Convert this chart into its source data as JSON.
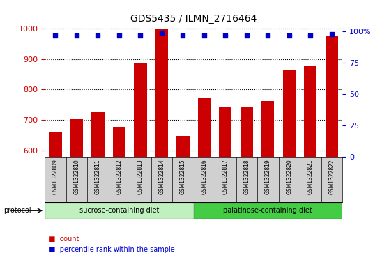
{
  "title": "GDS5435 / ILMN_2716464",
  "samples": [
    "GSM1322809",
    "GSM1322810",
    "GSM1322811",
    "GSM1322812",
    "GSM1322813",
    "GSM1322814",
    "GSM1322815",
    "GSM1322816",
    "GSM1322817",
    "GSM1322818",
    "GSM1322819",
    "GSM1322820",
    "GSM1322821",
    "GSM1322822"
  ],
  "counts": [
    663,
    703,
    727,
    678,
    885,
    997,
    648,
    773,
    745,
    742,
    762,
    863,
    878,
    975
  ],
  "percentiles": [
    97,
    97,
    97,
    97,
    97,
    99,
    97,
    97,
    97,
    97,
    97,
    97,
    97,
    98
  ],
  "ylim_left": [
    580,
    1010
  ],
  "ylim_right": [
    0,
    105
  ],
  "yticks_left": [
    600,
    700,
    800,
    900,
    1000
  ],
  "ytick_left_labels": [
    "600",
    "700",
    "800",
    "900",
    "1000"
  ],
  "yticks_right": [
    0,
    25,
    50,
    75,
    100
  ],
  "ytick_right_labels": [
    "0",
    "25",
    "50",
    "75",
    "100%"
  ],
  "bar_color": "#cc0000",
  "dot_color": "#0000cc",
  "grid_color": "#000000",
  "bg_color": "#ffffff",
  "sample_box_color": "#d0d0d0",
  "sucrose_color": "#c0f0c0",
  "palatinose_color": "#44cc44",
  "protocol_label": "protocol",
  "sucrose_label": "sucrose-containing diet",
  "palatinose_label": "palatinose-containing diet",
  "legend_count_label": "count",
  "legend_pct_label": "percentile rank within the sample",
  "bar_color_left": "#cc0000",
  "dot_color_right": "#0000cc",
  "n_sucrose": 7,
  "n_palatinose": 7
}
